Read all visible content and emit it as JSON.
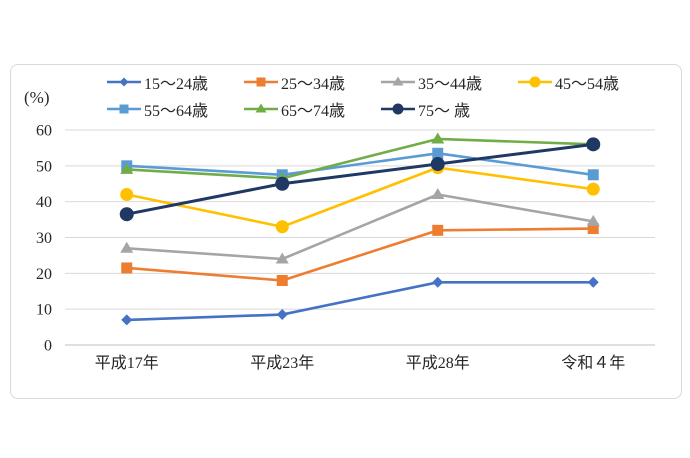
{
  "chart_data": {
    "type": "line",
    "title": "",
    "ylabel": "(%)",
    "xlabel": "",
    "categories": [
      "平成17年",
      "平成23年",
      "平成28年",
      "令和４年"
    ],
    "y_ticks": [
      0,
      10,
      20,
      30,
      40,
      50,
      60
    ],
    "ylim": [
      0,
      60
    ],
    "grid": true,
    "legend_position": "top",
    "series": [
      {
        "name": "15～24歳",
        "color": "#4472C4",
        "marker": "diamond",
        "values": [
          7,
          8.5,
          17.5,
          17.5
        ]
      },
      {
        "name": "25～34歳",
        "color": "#ED7D31",
        "marker": "square",
        "values": [
          21.5,
          18,
          32,
          32.5
        ]
      },
      {
        "name": "35～44歳",
        "color": "#A5A5A5",
        "marker": "triangle",
        "values": [
          27,
          24,
          42,
          34.5
        ]
      },
      {
        "name": "45～54歳",
        "color": "#FFC000",
        "marker": "circle",
        "values": [
          42,
          33,
          49.5,
          43.5
        ]
      },
      {
        "name": "55～64歳",
        "color": "#5B9BD5",
        "marker": "square",
        "values": [
          50,
          47.5,
          53.5,
          47.5
        ]
      },
      {
        "name": "65～74歳",
        "color": "#70AD47",
        "marker": "triangle",
        "values": [
          49,
          46.5,
          57.5,
          56
        ]
      },
      {
        "name": "75～ 歳",
        "color": "#1F3864",
        "marker": "circle",
        "values": [
          36.5,
          45,
          50.5,
          56
        ]
      }
    ],
    "colors": {
      "gridline": "#d9d9d9",
      "axis_line": "#bfbfbf",
      "text": "#262626"
    }
  }
}
